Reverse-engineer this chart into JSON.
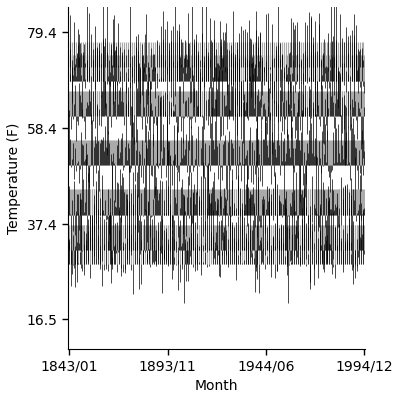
{
  "title": "",
  "xlabel": "Month",
  "ylabel": "Temperature (F)",
  "start_year": 1843,
  "start_month": 1,
  "end_year": 1994,
  "end_month": 12,
  "mean_temp": 53.0,
  "seasonal_amplitude": 21.5,
  "noise_std": 5.5,
  "ylim": [
    10.0,
    85.0
  ],
  "yticks": [
    16.5,
    37.4,
    58.4,
    79.4
  ],
  "xtick_labels": [
    "1843/01",
    "1893/11",
    "1944/06",
    "1994/12"
  ],
  "line_color": "#000000",
  "gray_color": "#aaaaaa",
  "background_color": "#ffffff",
  "figsize": [
    4.0,
    4.0
  ],
  "dpi": 100
}
